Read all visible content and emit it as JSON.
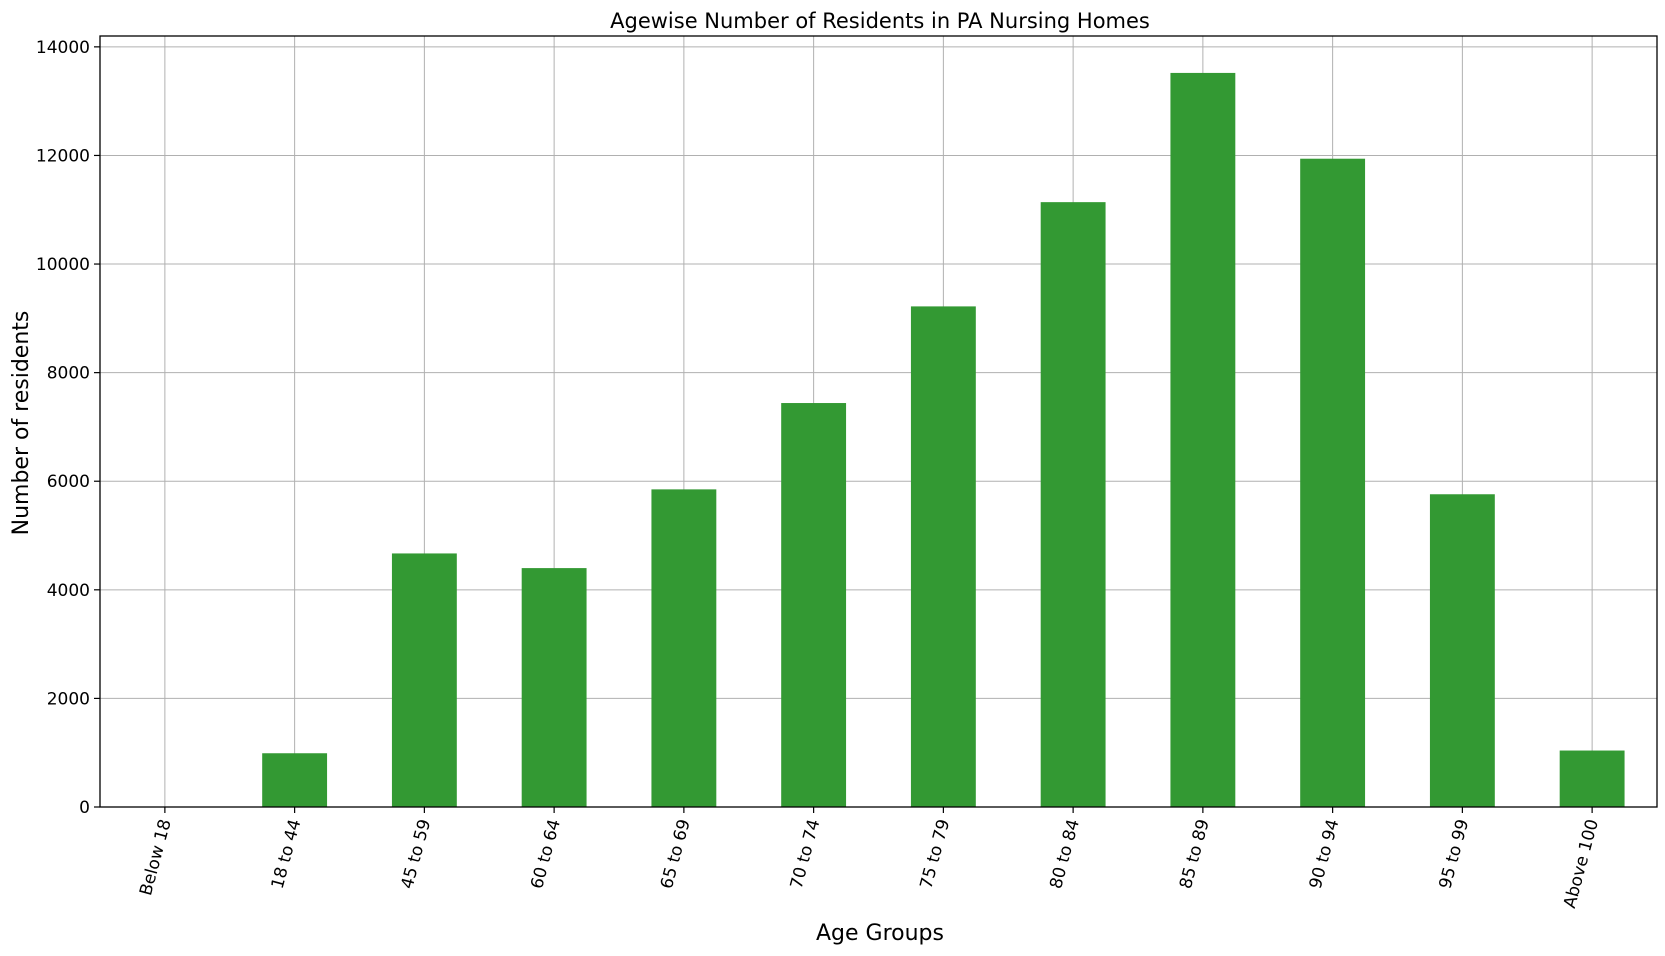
{
  "chart_data": {
    "type": "bar",
    "title": "Agewise Number of Residents in PA Nursing Homes",
    "xlabel": "Age Groups",
    "ylabel": "Number of residents",
    "categories": [
      "Below 18",
      "18 to 44",
      "45 to 59",
      "60 to 64",
      "65 to 69",
      "70 to 74",
      "75 to 79",
      "80 to 84",
      "85 to 89",
      "90 to 94",
      "95 to 99",
      "Above 100"
    ],
    "series": [
      {
        "values": [
          0,
          990,
          4670,
          4400,
          5850,
          7440,
          9220,
          11140,
          13520,
          11940,
          5760,
          1040
        ]
      }
    ],
    "ylim": [
      0,
      14200
    ],
    "yticks": [
      0,
      2000,
      4000,
      6000,
      8000,
      10000,
      12000,
      14000
    ],
    "ytick_labels": [
      "0",
      "2000",
      "4000",
      "6000",
      "8000",
      "10000",
      "12000",
      "14000"
    ],
    "grid": true,
    "legend": "none",
    "bar_color": "#339933",
    "grid_color": "#b0b0b0",
    "x_tick_rotation_deg": -75
  }
}
